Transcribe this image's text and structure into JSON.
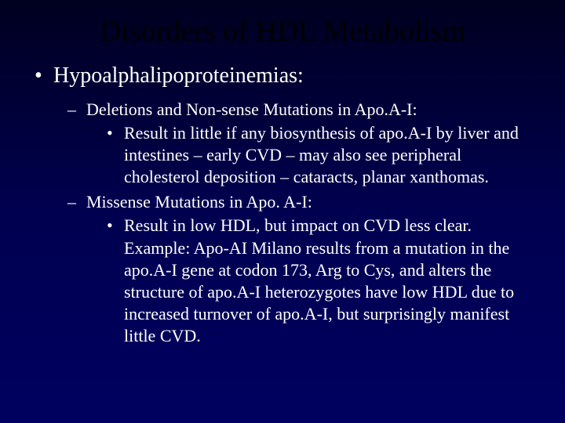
{
  "slide": {
    "title": "Disorders of HDL Metabolism",
    "background_gradient_top": "#000020",
    "background_gradient_bottom": "#000060",
    "title_color": "#000000",
    "body_color": "#ffffff",
    "font_family": "Times New Roman"
  },
  "bullets": {
    "l1_marker": "•",
    "l2_marker": "–",
    "l3_marker": "•",
    "item1": "Hypoalphalipoproteinemias:",
    "sub1": "Deletions and Non-sense Mutations in Apo.A-I:",
    "sub1_detail": "Result in little if any biosynthesis of apo.A-I by liver and intestines – early CVD – may also see peripheral cholesterol deposition – cataracts, planar xanthomas.",
    "sub2": "Missense Mutations in Apo. A-I:",
    "sub2_detail": "Result in low HDL, but impact on CVD less clear. Example: Apo-AI Milano results from a mutation in the apo.A-I gene at codon 173, Arg to Cys, and alters the structure of apo.A-I  heterozygotes have low HDL due to increased turnover of apo.A-I, but surprisingly manifest little CVD."
  }
}
